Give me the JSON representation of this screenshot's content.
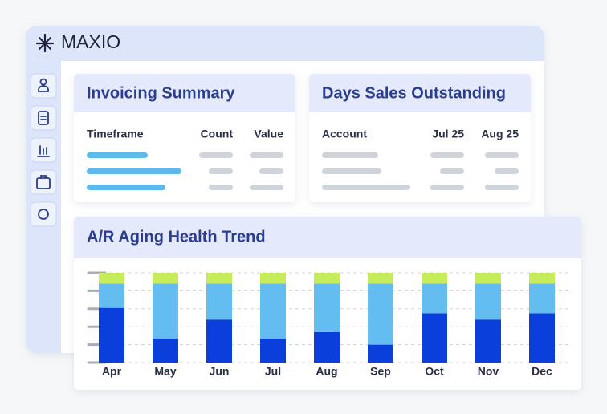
{
  "brand": "MAXIO",
  "invoicing_summary": {
    "title": "Invoicing Summary",
    "columns": [
      "Timeframe",
      "Count",
      "Value"
    ]
  },
  "days_sales_outstanding": {
    "title": "Days Sales Outstanding",
    "columns": [
      "Account",
      "Jul 25",
      "Aug 25"
    ]
  },
  "chart_data": {
    "type": "stacked_bar",
    "title": "A/R Aging Health Trend",
    "categories": [
      "Apr",
      "May",
      "Jun",
      "Jul",
      "Aug",
      "Sep",
      "Oct",
      "Nov",
      "Dec"
    ],
    "series": [
      {
        "color": "#0b3fdc",
        "values": [
          61,
          27,
          48,
          27,
          34,
          20,
          55,
          48,
          55
        ]
      },
      {
        "color": "#63bdf0",
        "values": [
          27,
          61,
          40,
          61,
          54,
          68,
          33,
          40,
          33
        ]
      },
      {
        "color": "#c6ec5c",
        "values": [
          12,
          12,
          12,
          12,
          12,
          12,
          12,
          12,
          12
        ]
      }
    ],
    "ylim": [
      0,
      100
    ],
    "yticks": [
      0,
      20,
      40,
      60,
      80,
      100
    ],
    "grid": true
  }
}
